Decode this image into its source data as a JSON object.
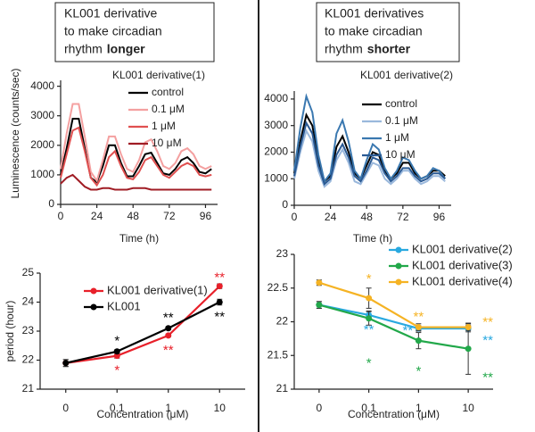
{
  "headers": [
    {
      "lines": [
        "KL001 derivative",
        "to make circadian",
        "rhythm"
      ],
      "emphasis": "longer"
    },
    {
      "lines": [
        "KL001 derivatives",
        "to make circadian",
        "rhythm"
      ],
      "emphasis": "shorter"
    }
  ],
  "chart_data": [
    {
      "type": "line",
      "y_label": "Luminescence (counts/sec)",
      "x_label": "Time (h)",
      "legend_title": "KL001 derivative(1)",
      "x": [
        0,
        4,
        8,
        12,
        16,
        20,
        24,
        28,
        32,
        36,
        40,
        44,
        48,
        52,
        56,
        60,
        64,
        68,
        72,
        76,
        80,
        84,
        88,
        92,
        96,
        100
      ],
      "xlim": [
        0,
        104
      ],
      "xticks": [
        0,
        24,
        48,
        72,
        96
      ],
      "ylim": [
        0,
        4200
      ],
      "yticks": [
        0,
        1000,
        2000,
        3000,
        4000
      ],
      "series": [
        {
          "name": "control",
          "color": "#000000",
          "values": [
            1000,
            1900,
            2900,
            2900,
            1900,
            900,
            750,
            1300,
            2000,
            2000,
            1400,
            950,
            950,
            1300,
            1700,
            1750,
            1400,
            1050,
            1000,
            1200,
            1500,
            1600,
            1400,
            1100,
            1050,
            1200
          ]
        },
        {
          "name": "0.1 μM",
          "color": "#f4a0a0",
          "values": [
            1200,
            2400,
            3400,
            3400,
            2300,
            1100,
            800,
            1500,
            2300,
            2300,
            1700,
            1200,
            1100,
            1500,
            2100,
            2200,
            1800,
            1300,
            1200,
            1400,
            1800,
            1900,
            1700,
            1300,
            1200,
            1300
          ]
        },
        {
          "name": "1 μM",
          "color": "#e05050",
          "values": [
            900,
            1700,
            2500,
            2600,
            1800,
            900,
            650,
            1000,
            1600,
            1800,
            1300,
            900,
            850,
            1100,
            1500,
            1600,
            1300,
            1000,
            900,
            1100,
            1300,
            1400,
            1300,
            1000,
            950,
            1000
          ]
        },
        {
          "name": "10 μM",
          "color": "#a01c24",
          "values": [
            700,
            900,
            1000,
            800,
            600,
            500,
            500,
            550,
            550,
            500,
            500,
            500,
            550,
            550,
            550,
            500,
            500,
            500,
            500,
            500,
            500,
            500,
            500,
            500,
            500,
            500
          ]
        }
      ]
    },
    {
      "type": "line",
      "x_label": "Time (h)",
      "legend_title": "KL001 derivative(2)",
      "x": [
        0,
        4,
        8,
        12,
        16,
        20,
        24,
        28,
        32,
        36,
        40,
        44,
        48,
        52,
        56,
        60,
        64,
        68,
        72,
        76,
        80,
        84,
        88,
        92,
        96,
        100
      ],
      "xlim": [
        0,
        104
      ],
      "xticks": [
        0,
        24,
        48,
        72,
        96
      ],
      "ylim": [
        0,
        4300
      ],
      "yticks": [
        0,
        1000,
        2000,
        3000,
        4000
      ],
      "series": [
        {
          "name": "control",
          "color": "#000000",
          "values": [
            1200,
            2400,
            3400,
            3000,
            1700,
            900,
            1100,
            2200,
            2600,
            2000,
            1200,
            1000,
            1500,
            2000,
            1900,
            1300,
            1000,
            1200,
            1600,
            1600,
            1200,
            1000,
            1100,
            1300,
            1300,
            1100
          ]
        },
        {
          "name": "0.1 μM",
          "color": "#9ab8dc",
          "values": [
            1000,
            2000,
            2800,
            2400,
            1300,
            700,
            900,
            1700,
            2100,
            1600,
            900,
            800,
            1200,
            1600,
            1500,
            1000,
            800,
            1000,
            1300,
            1300,
            1000,
            800,
            900,
            1100,
            1100,
            900
          ]
        },
        {
          "name": "1 μM",
          "color": "#3a78b0",
          "values": [
            1300,
            2900,
            4100,
            3500,
            1900,
            900,
            1200,
            2700,
            3200,
            2400,
            1300,
            1000,
            1700,
            2300,
            2100,
            1400,
            1000,
            1300,
            1800,
            1700,
            1300,
            1000,
            1100,
            1400,
            1300,
            1000
          ]
        },
        {
          "name": "10 μM",
          "color": "#2a5a94",
          "values": [
            1100,
            2200,
            3100,
            2700,
            1500,
            800,
            1000,
            1900,
            2300,
            1800,
            1100,
            900,
            1300,
            1800,
            1700,
            1200,
            900,
            1100,
            1400,
            1400,
            1100,
            900,
            1000,
            1200,
            1200,
            1000
          ]
        }
      ]
    },
    {
      "type": "line",
      "y_label": "period (hour)",
      "x_label": "Concentration (μM)",
      "categories": [
        "0",
        "0.1",
        "1",
        "10"
      ],
      "ylim": [
        21,
        25
      ],
      "yticks": [
        21,
        22,
        23,
        24,
        25
      ],
      "series": [
        {
          "name": "KL001 derivative(1)",
          "color": "#e8202a",
          "values": [
            21.9,
            22.15,
            22.85,
            24.55
          ],
          "errors": [
            0.12,
            0.08,
            0.05,
            0.08
          ],
          "significance": [
            null,
            "*",
            "**",
            "**"
          ]
        },
        {
          "name": "KL001",
          "color": "#000000",
          "values": [
            21.9,
            22.3,
            23.1,
            24.0
          ],
          "errors": [
            0.12,
            0.06,
            0.05,
            0.1
          ],
          "significance": [
            null,
            "*",
            "**",
            "**"
          ]
        }
      ]
    },
    {
      "type": "line",
      "x_label": "Concentration (μM)",
      "categories": [
        "0",
        "0.1",
        "1",
        "10"
      ],
      "ylim": [
        21,
        23
      ],
      "yticks": [
        21,
        21.5,
        22,
        22.5,
        23
      ],
      "series": [
        {
          "name": "KL001 derivative(2)",
          "color": "#29a9e0",
          "values": [
            22.25,
            22.1,
            21.9,
            21.9
          ],
          "errors": [
            0.05,
            0.06,
            0.04,
            0.05
          ],
          "significance": [
            null,
            "**",
            "**",
            "**"
          ]
        },
        {
          "name": "KL001 derivative(3)",
          "color": "#22a84a",
          "values": [
            22.25,
            22.05,
            21.72,
            21.6
          ],
          "errors": [
            0.05,
            0.1,
            0.12,
            0.38
          ],
          "significance": [
            null,
            "*",
            "*",
            "**"
          ]
        },
        {
          "name": "KL001 derivative(4)",
          "color": "#f5b324",
          "values": [
            22.58,
            22.35,
            21.92,
            21.92
          ],
          "errors": [
            0.04,
            0.15,
            0.05,
            0.05
          ],
          "significance": [
            null,
            "*",
            "**",
            "**"
          ]
        }
      ]
    }
  ]
}
